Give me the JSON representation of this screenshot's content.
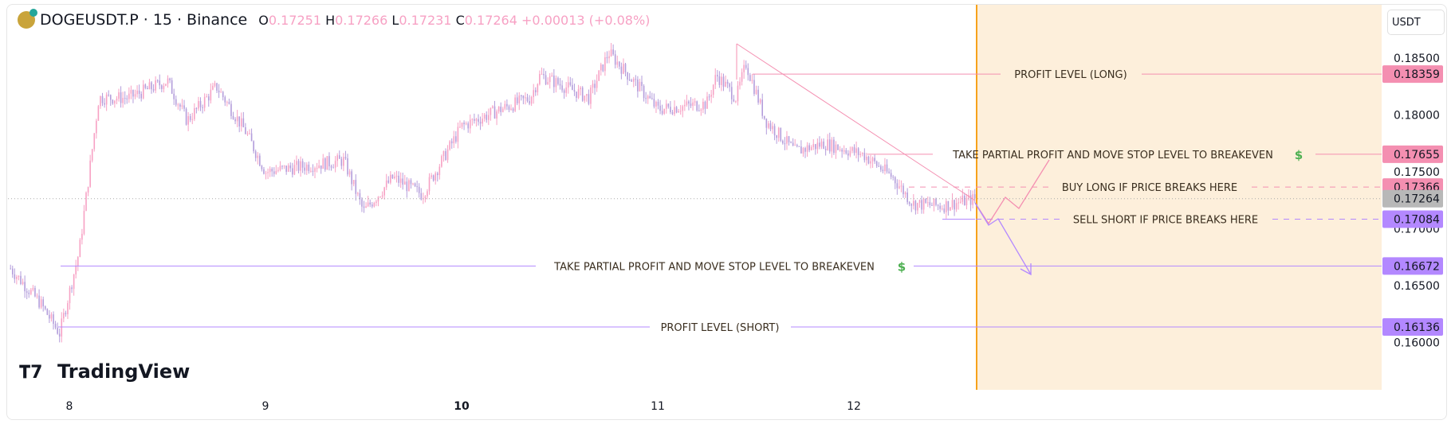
{
  "header": {
    "symbol": "DOGEUSDT.P",
    "interval": "15",
    "exchange": "Binance",
    "open": "0.17251",
    "high": "0.17266",
    "low": "0.17231",
    "close": "0.17264",
    "change": "+0.00013 (+0.08%)",
    "o_label": "O",
    "h_label": "H",
    "l_label": "L",
    "c_label": "C",
    "sep": "·"
  },
  "currency": "USDT",
  "logo": "TradingView",
  "colors": {
    "up": "#f7a1c4",
    "down": "#b39ddb",
    "orange": "#f7a21b",
    "shade": "#fdefdb",
    "pink": "#f48fb1",
    "purple": "#b388ff",
    "current": "#b8b8b8"
  },
  "annotations": {
    "profit_long": "PROFIT LEVEL (LONG)",
    "partial_upper": "TAKE PARTIAL PROFIT AND MOVE STOP LEVEL TO BREAKEVEN",
    "buy_long": "BUY LONG IF PRICE BREAKS HERE",
    "sell_short": "SELL SHORT IF PRICE BREAKS HERE",
    "partial_lower": "TAKE PARTIAL PROFIT AND MOVE STOP LEVEL TO BREAKEVEN",
    "profit_short": "PROFIT LEVEL (SHORT)",
    "dollar": "$"
  },
  "chart_data": {
    "type": "candlestick",
    "title": "DOGEUSDT.P · 15 · Binance",
    "ylim": [
      0.1575,
      0.1885
    ],
    "y_ticks": [
      "0.18500",
      "0.18000",
      "0.17500",
      "0.17000",
      "0.16500",
      "0.16000"
    ],
    "x_ticks": [
      "8",
      "9",
      "10",
      "11",
      "12"
    ],
    "price_tags": [
      {
        "value": "0.18359",
        "kind": "pink"
      },
      {
        "value": "0.17655",
        "kind": "pink"
      },
      {
        "value": "0.17366",
        "kind": "pink"
      },
      {
        "value": "0.17264",
        "kind": "current"
      },
      {
        "value": "0.17084",
        "kind": "purple"
      },
      {
        "value": "0.16672",
        "kind": "purple"
      },
      {
        "value": "0.16136",
        "kind": "purple"
      }
    ],
    "price_path_waypoints": [
      [
        7.7,
        0.1665
      ],
      [
        7.85,
        0.1635
      ],
      [
        7.95,
        0.1608
      ],
      [
        8.05,
        0.168
      ],
      [
        8.15,
        0.1815
      ],
      [
        8.3,
        0.1815
      ],
      [
        8.5,
        0.183
      ],
      [
        8.6,
        0.1795
      ],
      [
        8.75,
        0.1825
      ],
      [
        8.9,
        0.1785
      ],
      [
        9.0,
        0.175
      ],
      [
        9.2,
        0.1755
      ],
      [
        9.4,
        0.176
      ],
      [
        9.5,
        0.1715
      ],
      [
        9.65,
        0.1745
      ],
      [
        9.8,
        0.173
      ],
      [
        10.0,
        0.179
      ],
      [
        10.2,
        0.1805
      ],
      [
        10.35,
        0.1815
      ],
      [
        10.4,
        0.1835
      ],
      [
        10.65,
        0.1815
      ],
      [
        10.75,
        0.1855
      ],
      [
        10.9,
        0.1825
      ],
      [
        11.0,
        0.1805
      ],
      [
        11.25,
        0.181
      ],
      [
        11.3,
        0.1835
      ],
      [
        11.4,
        0.1815
      ],
      [
        11.45,
        0.1845
      ],
      [
        11.55,
        0.1795
      ],
      [
        11.7,
        0.1768
      ],
      [
        11.85,
        0.1775
      ],
      [
        12.05,
        0.1765
      ],
      [
        12.2,
        0.1745
      ],
      [
        12.3,
        0.1722
      ],
      [
        12.45,
        0.172
      ],
      [
        12.62,
        0.17264
      ]
    ]
  }
}
